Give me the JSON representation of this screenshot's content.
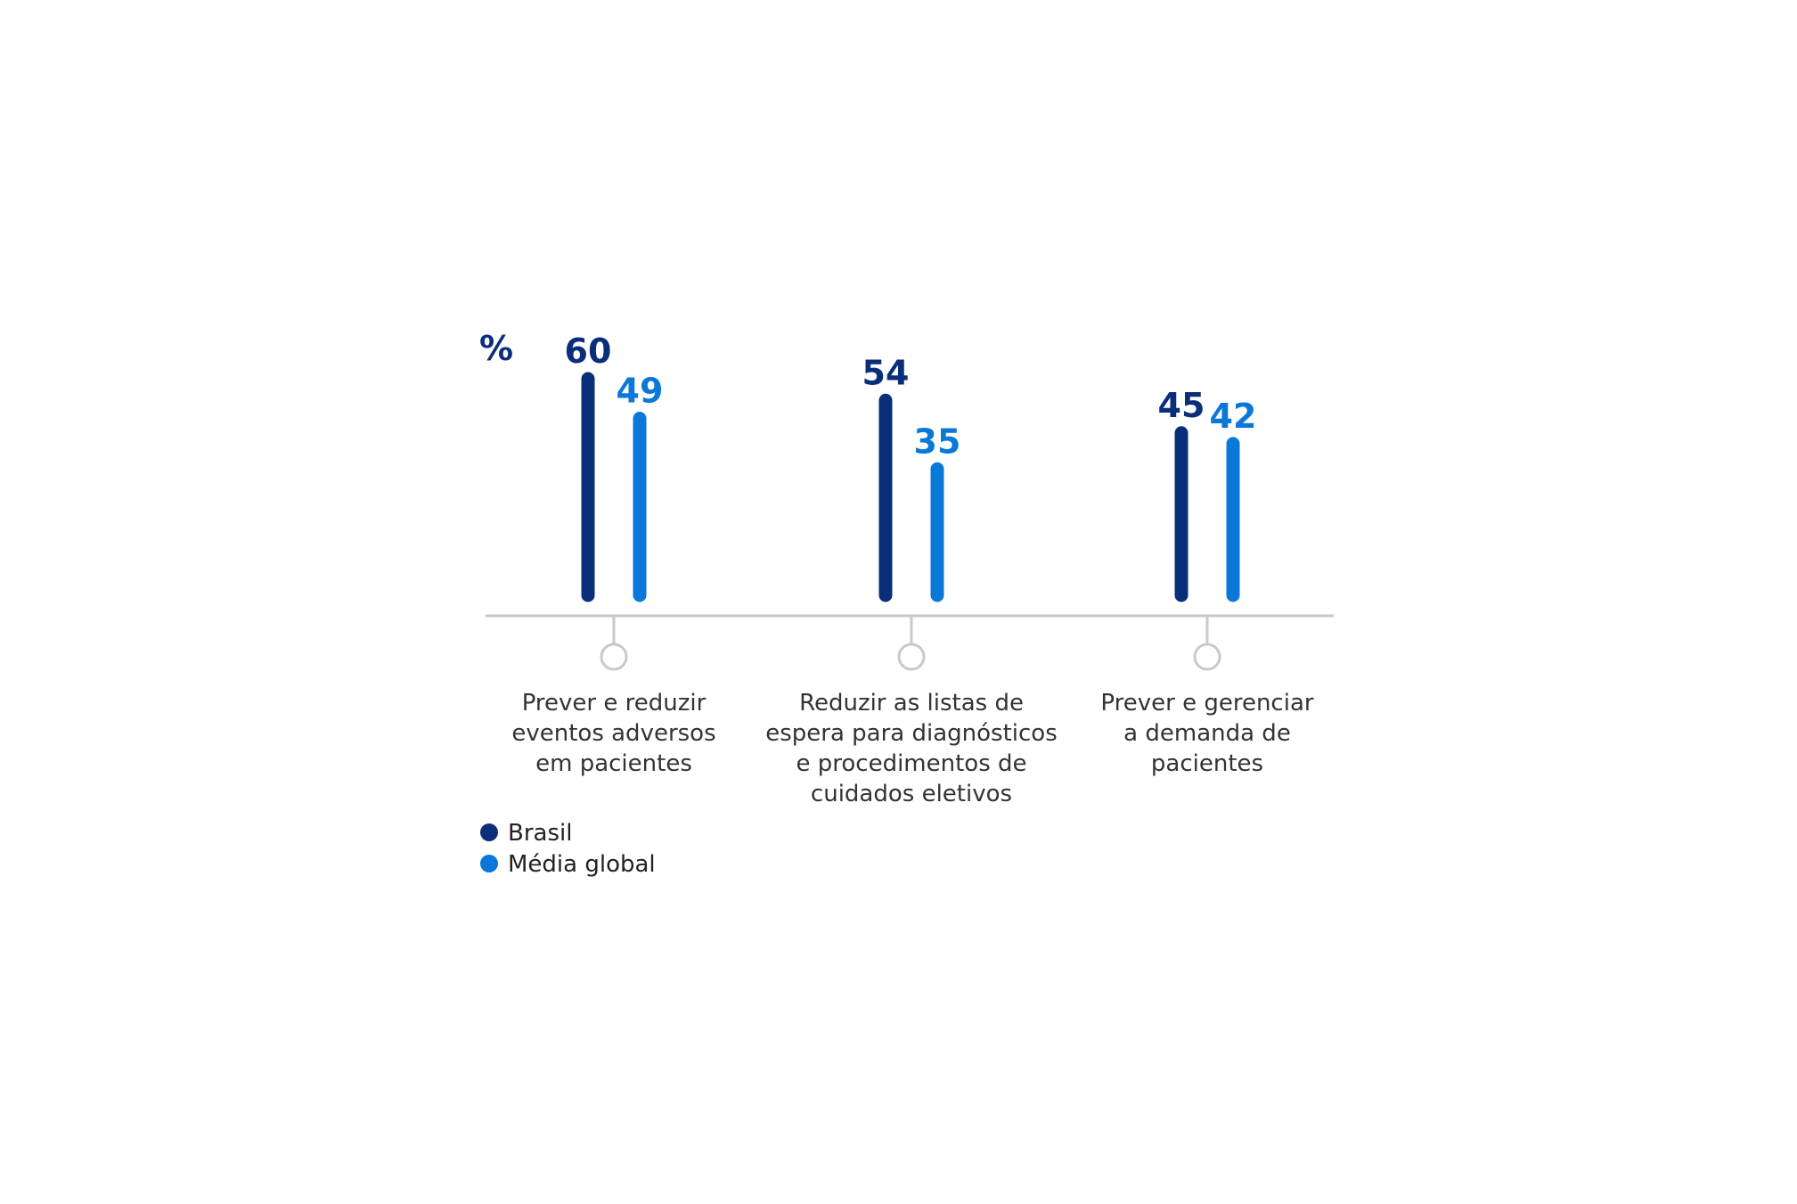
{
  "chart_data": {
    "type": "bar",
    "unit_label": "%",
    "categories": [
      [
        "Prever e reduzir",
        "eventos adversos",
        "em pacientes"
      ],
      [
        "Reduzir as listas de",
        "espera para diagnósticos",
        "e procedimentos de",
        "cuidados eletivos"
      ],
      [
        "Prever e gerenciar",
        "a demanda de",
        "pacientes"
      ]
    ],
    "series": [
      {
        "name": "Brasil",
        "color": "#0b2e7a",
        "values": [
          60,
          54,
          45
        ],
        "labels": [
          "60",
          "54",
          "45"
        ]
      },
      {
        "name": "Média global",
        "color": "#0a78d8",
        "values": [
          49,
          35,
          42
        ],
        "labels": [
          "49",
          "35",
          "42"
        ]
      }
    ],
    "axis_color": "#c8c8d0",
    "marker_icon": "circle-marker-icon",
    "grid": false,
    "legend_position": "bottom-left"
  }
}
